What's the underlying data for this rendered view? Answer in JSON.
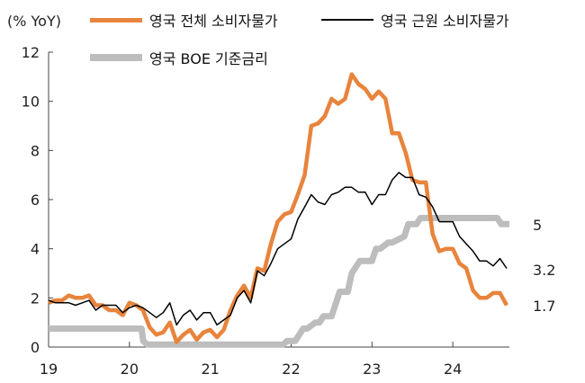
{
  "chart_data": {
    "type": "line",
    "unit_label": "(% YoY)",
    "x_ticks": [
      "19",
      "20",
      "21",
      "22",
      "23",
      "24"
    ],
    "x_range": [
      2019.0,
      2024.7
    ],
    "y_ticks": [
      "0",
      "2",
      "4",
      "6",
      "8",
      "10",
      "12"
    ],
    "ylim": [
      0,
      12
    ],
    "grid": false,
    "legend_position": "top",
    "series": [
      {
        "name": "영국 전체 소비자물가",
        "color": "#e8843c",
        "x": [
          2019.0,
          2019.083,
          2019.167,
          2019.25,
          2019.333,
          2019.417,
          2019.5,
          2019.583,
          2019.667,
          2019.75,
          2019.833,
          2019.917,
          2020.0,
          2020.083,
          2020.167,
          2020.25,
          2020.333,
          2020.417,
          2020.5,
          2020.583,
          2020.667,
          2020.75,
          2020.833,
          2020.917,
          2021.0,
          2021.083,
          2021.167,
          2021.25,
          2021.333,
          2021.417,
          2021.5,
          2021.583,
          2021.667,
          2021.75,
          2021.833,
          2021.917,
          2022.0,
          2022.083,
          2022.167,
          2022.25,
          2022.333,
          2022.417,
          2022.5,
          2022.583,
          2022.667,
          2022.75,
          2022.833,
          2022.917,
          2023.0,
          2023.083,
          2023.167,
          2023.25,
          2023.333,
          2023.417,
          2023.5,
          2023.583,
          2023.667,
          2023.75,
          2023.833,
          2023.917,
          2024.0,
          2024.083,
          2024.167,
          2024.25,
          2024.333,
          2024.417,
          2024.5,
          2024.583,
          2024.667
        ],
        "values": [
          1.8,
          1.9,
          1.9,
          2.1,
          2.0,
          2.0,
          2.1,
          1.7,
          1.7,
          1.5,
          1.5,
          1.3,
          1.8,
          1.7,
          1.5,
          0.8,
          0.5,
          0.6,
          1.0,
          0.2,
          0.5,
          0.7,
          0.3,
          0.6,
          0.7,
          0.4,
          0.7,
          1.5,
          2.1,
          2.5,
          2.0,
          3.2,
          3.1,
          4.2,
          5.1,
          5.4,
          5.5,
          6.2,
          7.0,
          9.0,
          9.1,
          9.4,
          10.1,
          9.9,
          10.1,
          11.1,
          10.7,
          10.5,
          10.1,
          10.4,
          10.1,
          8.7,
          8.7,
          7.9,
          6.8,
          6.7,
          6.7,
          4.6,
          3.9,
          4.0,
          4.0,
          3.4,
          3.2,
          2.3,
          2.0,
          2.0,
          2.2,
          2.2,
          1.7
        ]
      },
      {
        "name": "영국 근원 소비자물가",
        "color": "#000000",
        "x": [
          2019.0,
          2019.083,
          2019.167,
          2019.25,
          2019.333,
          2019.417,
          2019.5,
          2019.583,
          2019.667,
          2019.75,
          2019.833,
          2019.917,
          2020.0,
          2020.083,
          2020.167,
          2020.25,
          2020.333,
          2020.417,
          2020.5,
          2020.583,
          2020.667,
          2020.75,
          2020.833,
          2020.917,
          2021.0,
          2021.083,
          2021.167,
          2021.25,
          2021.333,
          2021.417,
          2021.5,
          2021.583,
          2021.667,
          2021.75,
          2021.833,
          2021.917,
          2022.0,
          2022.083,
          2022.167,
          2022.25,
          2022.333,
          2022.417,
          2022.5,
          2022.583,
          2022.667,
          2022.75,
          2022.833,
          2022.917,
          2023.0,
          2023.083,
          2023.167,
          2023.25,
          2023.333,
          2023.417,
          2023.5,
          2023.583,
          2023.667,
          2023.75,
          2023.833,
          2023.917,
          2024.0,
          2024.083,
          2024.167,
          2024.25,
          2024.333,
          2024.417,
          2024.5,
          2024.583,
          2024.667
        ],
        "values": [
          1.9,
          1.8,
          1.8,
          1.8,
          1.7,
          1.8,
          1.9,
          1.5,
          1.7,
          1.7,
          1.7,
          1.4,
          1.6,
          1.7,
          1.6,
          1.4,
          1.2,
          1.4,
          1.8,
          0.9,
          1.3,
          1.5,
          1.1,
          1.4,
          1.4,
          0.9,
          1.1,
          1.3,
          2.0,
          2.3,
          1.8,
          3.1,
          2.9,
          3.4,
          4.0,
          4.2,
          4.4,
          5.2,
          5.7,
          6.2,
          5.9,
          5.8,
          6.2,
          6.3,
          6.5,
          6.5,
          6.3,
          6.3,
          5.8,
          6.2,
          6.2,
          6.8,
          7.1,
          6.9,
          6.9,
          6.2,
          6.1,
          5.7,
          5.1,
          5.1,
          5.1,
          4.5,
          4.2,
          3.9,
          3.5,
          3.5,
          3.3,
          3.6,
          3.2
        ]
      },
      {
        "name": "영국 BOE 기준금리",
        "color": "#bdbdbd",
        "x": [
          2019.0,
          2019.1,
          2019.2,
          2019.3,
          2019.4,
          2019.5,
          2019.6,
          2019.7,
          2019.8,
          2019.9,
          2020.0,
          2020.15,
          2020.17,
          2020.22,
          2020.3,
          2020.5,
          2020.75,
          2021.0,
          2021.25,
          2021.5,
          2021.75,
          2021.9,
          2021.95,
          2022.05,
          2022.1,
          2022.15,
          2022.2,
          2022.3,
          2022.35,
          2022.4,
          2022.5,
          2022.55,
          2022.6,
          2022.7,
          2022.75,
          2022.85,
          2022.95,
          2023.0,
          2023.05,
          2023.1,
          2023.2,
          2023.25,
          2023.4,
          2023.45,
          2023.55,
          2023.6,
          2023.7,
          2023.8,
          2024.0,
          2024.2,
          2024.4,
          2024.55,
          2024.6,
          2024.7
        ],
        "values": [
          0.75,
          0.75,
          0.75,
          0.75,
          0.75,
          0.75,
          0.75,
          0.75,
          0.75,
          0.75,
          0.75,
          0.75,
          0.25,
          0.1,
          0.1,
          0.1,
          0.1,
          0.1,
          0.1,
          0.1,
          0.1,
          0.1,
          0.25,
          0.25,
          0.5,
          0.75,
          0.75,
          1.0,
          1.0,
          1.25,
          1.25,
          1.75,
          2.25,
          2.25,
          3.0,
          3.5,
          3.5,
          3.5,
          4.0,
          4.0,
          4.25,
          4.25,
          4.5,
          5.0,
          5.0,
          5.25,
          5.25,
          5.25,
          5.25,
          5.25,
          5.25,
          5.25,
          5.0,
          5.0
        ]
      }
    ],
    "end_labels": [
      {
        "series": "영국 BOE 기준금리",
        "text": "5",
        "value": 5.0
      },
      {
        "series": "영국 근원 소비자물가",
        "text": "3.2",
        "value": 3.2
      },
      {
        "series": "영국 전체 소비자물가",
        "text": "1.7",
        "value": 1.7
      }
    ]
  }
}
